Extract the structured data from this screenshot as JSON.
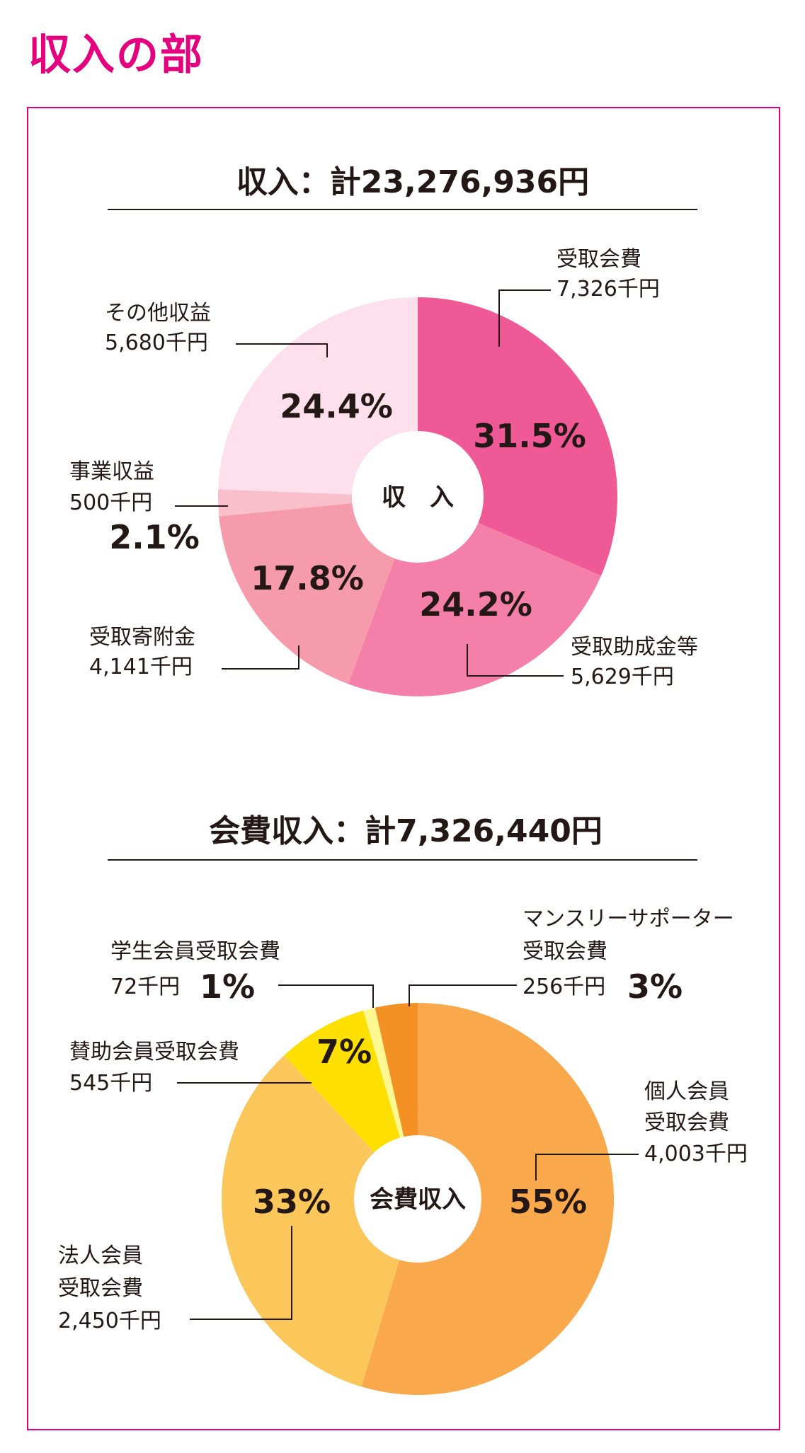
{
  "page_title": "収入の部",
  "chart_data": [
    {
      "type": "pie",
      "title": "収入：計23,276,936円",
      "center_label": "収　入",
      "slices": [
        {
          "name": "受取会費",
          "value": 7326,
          "value_label": "7,326千円",
          "percent": 31.5,
          "percent_label": "31.5%",
          "color": "#ef5a96"
        },
        {
          "name": "受取助成金等",
          "value": 5629,
          "value_label": "5,629千円",
          "percent": 24.2,
          "percent_label": "24.2%",
          "color": "#f47fa8"
        },
        {
          "name": "受取寄附金",
          "value": 4141,
          "value_label": "4,141千円",
          "percent": 17.8,
          "percent_label": "17.8%",
          "color": "#f59bab"
        },
        {
          "name": "事業収益",
          "value": 500,
          "value_label": "500千円",
          "percent": 2.1,
          "percent_label": "2.1%",
          "color": "#f9bfcb"
        },
        {
          "name": "その他収益",
          "value": 5680,
          "value_label": "5,680千円",
          "percent": 24.4,
          "percent_label": "24.4%",
          "color": "#fde0ec"
        }
      ]
    },
    {
      "type": "pie",
      "title": "会費収入：計7,326,440円",
      "center_label": "会費収入",
      "slices": [
        {
          "name": "個人会員受取会費",
          "name_lines": [
            "個人会員",
            "受取会費"
          ],
          "value": 4003,
          "value_label": "4,003千円",
          "percent": 55,
          "percent_label": "55%",
          "color": "#f9a94b"
        },
        {
          "name": "法人会員受取会費",
          "name_lines": [
            "法人会員",
            "受取会費"
          ],
          "value": 2450,
          "value_label": "2,450千円",
          "percent": 33,
          "percent_label": "33%",
          "color": "#fcc75a"
        },
        {
          "name": "賛助会員受取会費",
          "name_lines": [
            "賛助会員受取会費"
          ],
          "value": 545,
          "value_label": "545千円",
          "percent": 7,
          "percent_label": "7%",
          "color": "#fde000"
        },
        {
          "name": "学生会員受取会費",
          "name_lines": [
            "学生会員受取会費"
          ],
          "value": 72,
          "value_label": "72千円",
          "percent": 1,
          "percent_label": "1%",
          "color": "#fff78f"
        },
        {
          "name": "マンスリーサポーター受取会費",
          "name_lines": [
            "マンスリーサポーター",
            "受取会費"
          ],
          "value": 256,
          "value_label": "256千円",
          "percent": 3,
          "percent_label": "3%",
          "color": "#f39124"
        }
      ]
    }
  ]
}
